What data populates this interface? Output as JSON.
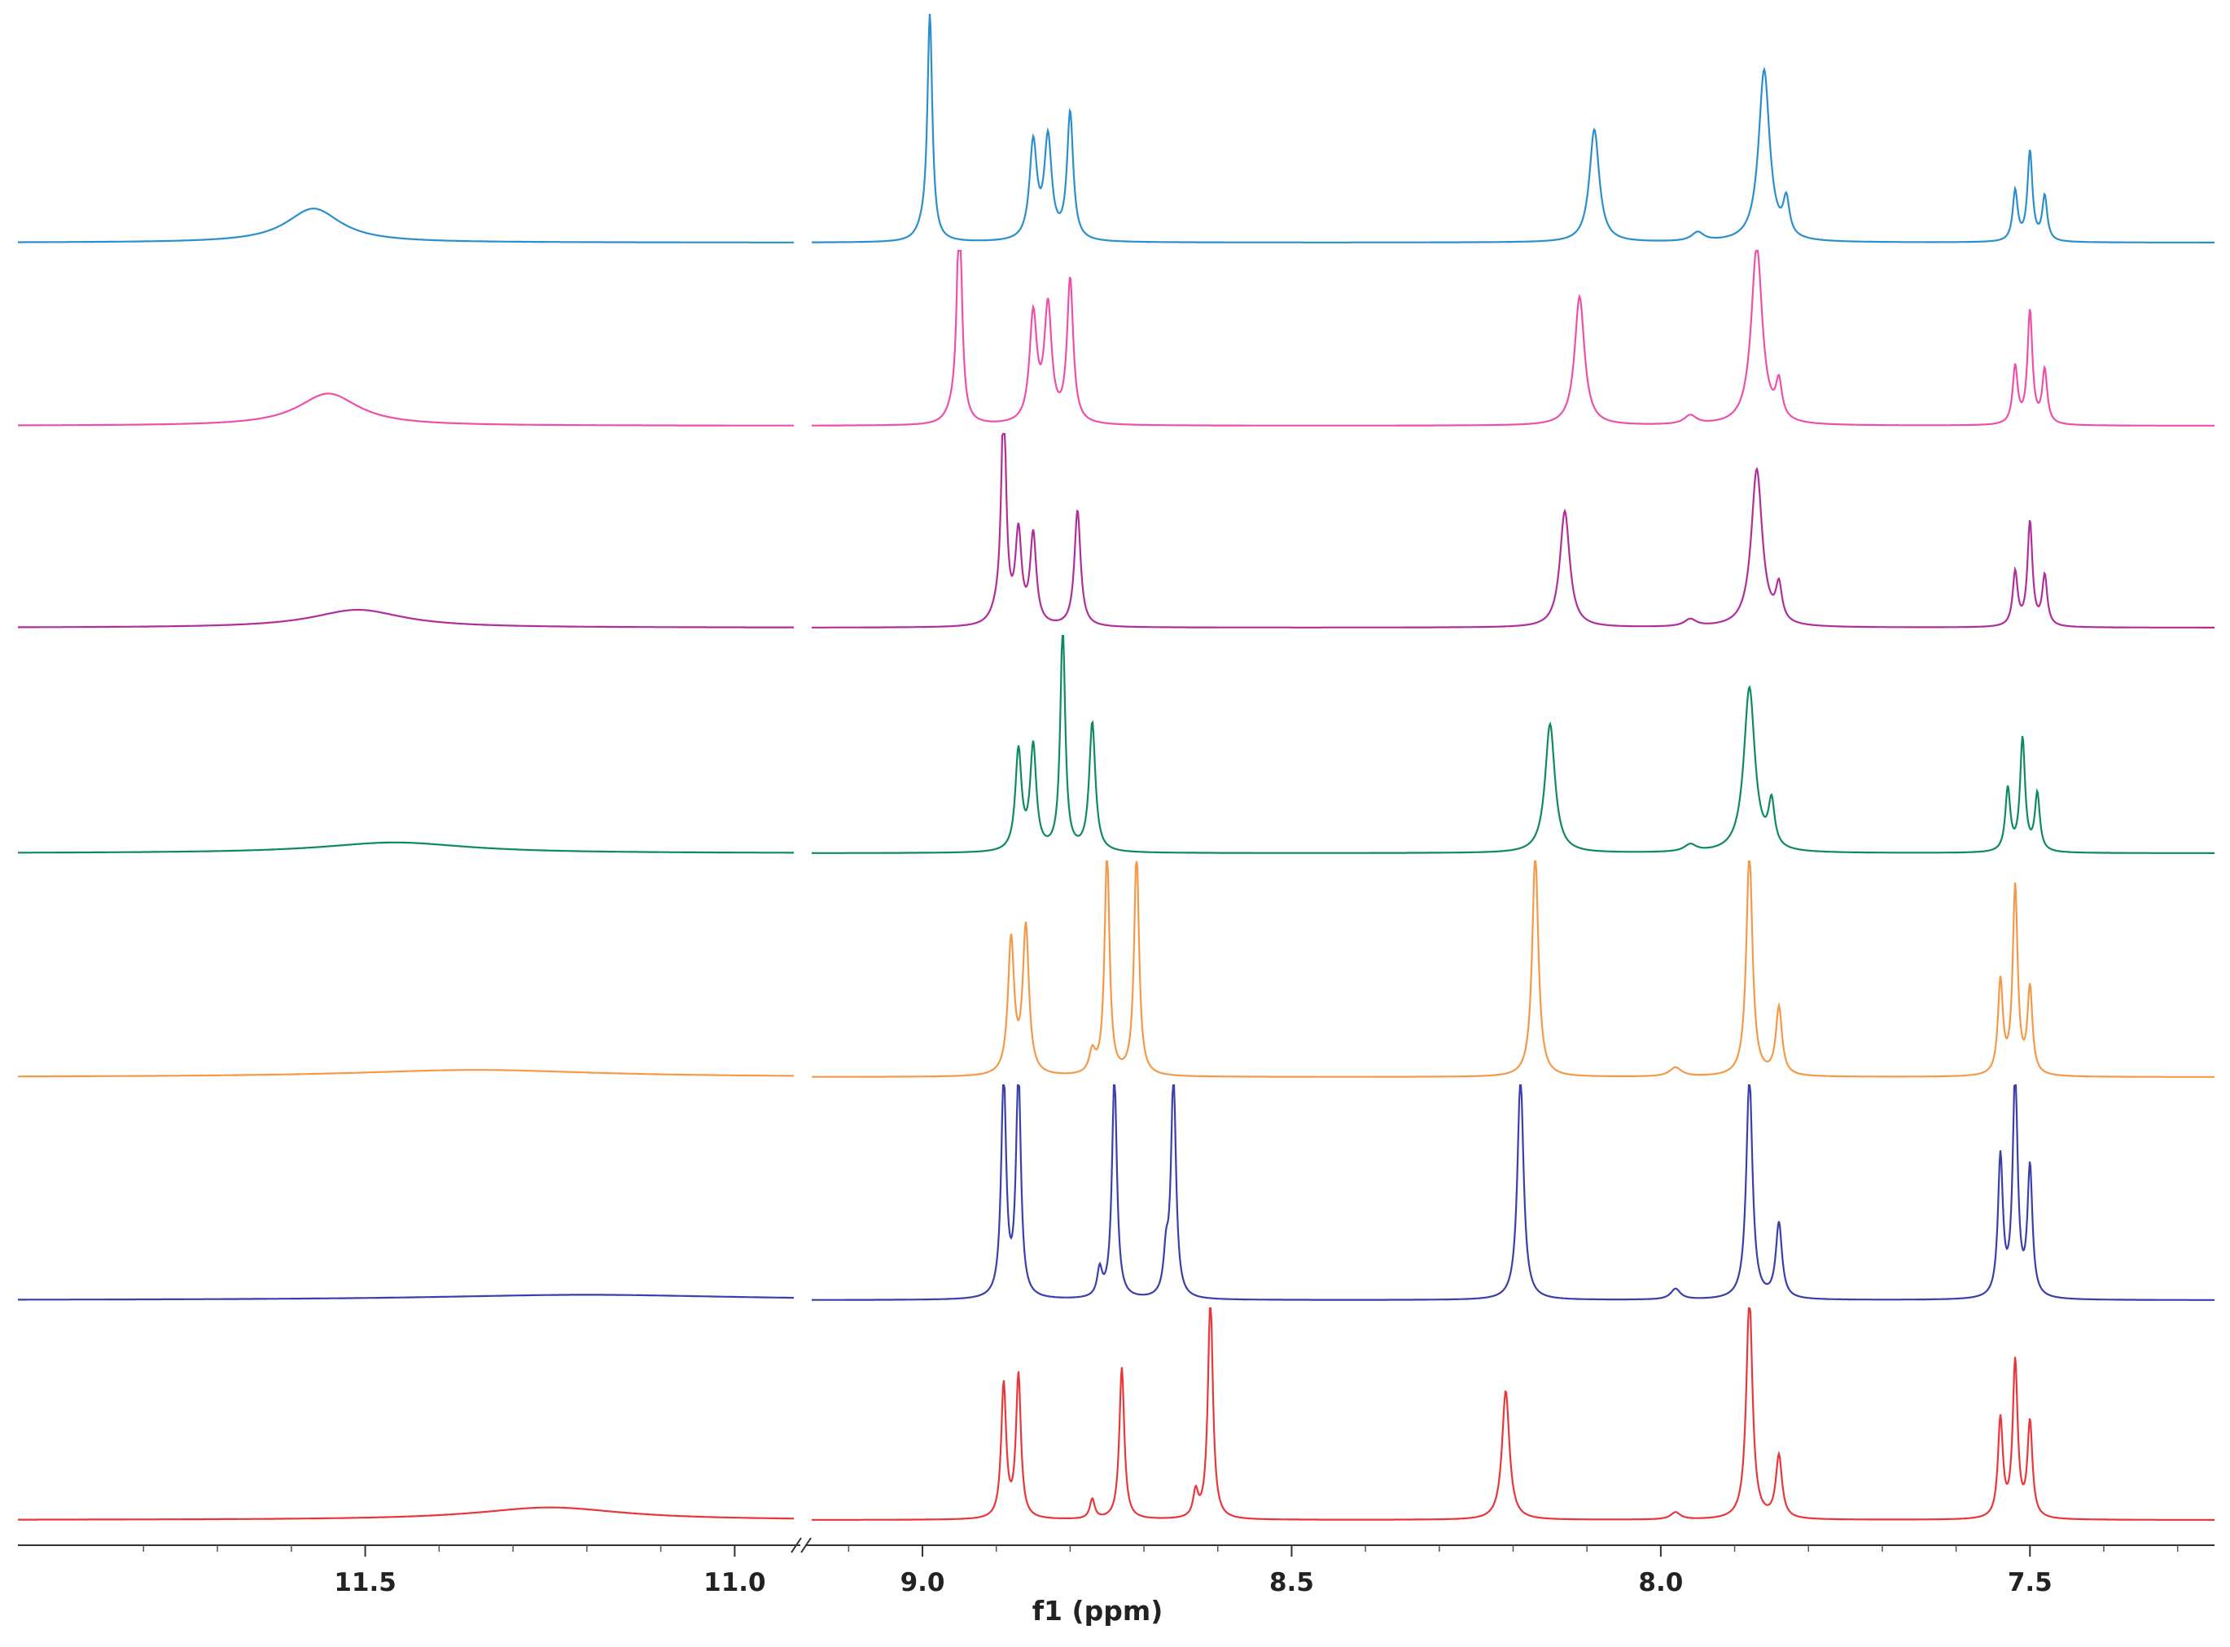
{
  "chart_data": {
    "type": "line",
    "title": "",
    "xlabel": "f1 (ppm)",
    "ylabel": "",
    "x_axis_reversed": true,
    "axis_break": true,
    "x_segments": [
      {
        "xlim": [
          11.97,
          10.92
        ]
      },
      {
        "xlim": [
          9.15,
          7.25
        ]
      }
    ],
    "ticks": [
      {
        "value": 11.5,
        "label": "11.5"
      },
      {
        "value": 11.0,
        "label": "11.0"
      },
      {
        "value": 9.0,
        "label": "9.0"
      },
      {
        "value": 8.5,
        "label": "8.5"
      },
      {
        "value": 8.0,
        "label": "8.0"
      },
      {
        "value": 7.5,
        "label": "7.5"
      }
    ],
    "minor_ticks": [
      11.8,
      11.7,
      11.6,
      11.4,
      11.3,
      11.2,
      11.1,
      9.1,
      8.9,
      8.8,
      8.7,
      8.6,
      8.4,
      8.3,
      8.2,
      8.1,
      7.9,
      7.8,
      7.7,
      7.6,
      7.4,
      7.3
    ],
    "grid": false,
    "legend": "none",
    "series": [
      {
        "color": "#2b8fcc",
        "peaks": [
          {
            "ppm": 11.57,
            "height": 0.19,
            "width": 0.045
          },
          {
            "ppm": 8.99,
            "height": 1.25,
            "width": 0.004
          },
          {
            "ppm": 9.0,
            "height": 0.05,
            "width": 0.01
          },
          {
            "ppm": 8.85,
            "height": 0.54,
            "width": 0.006
          },
          {
            "ppm": 8.83,
            "height": 0.56,
            "width": 0.006
          },
          {
            "ppm": 8.8,
            "height": 0.71,
            "width": 0.005
          },
          {
            "ppm": 8.09,
            "height": 0.63,
            "width": 0.008
          },
          {
            "ppm": 7.95,
            "height": 0.05,
            "width": 0.01
          },
          {
            "ppm": 7.86,
            "height": 0.96,
            "width": 0.009
          },
          {
            "ppm": 7.83,
            "height": 0.2,
            "width": 0.005
          },
          {
            "ppm": 7.52,
            "height": 0.28,
            "width": 0.004
          },
          {
            "ppm": 7.5,
            "height": 0.5,
            "width": 0.004
          },
          {
            "ppm": 7.48,
            "height": 0.25,
            "width": 0.004
          }
        ]
      },
      {
        "color": "#ee4fa8",
        "peaks": [
          {
            "ppm": 11.55,
            "height": 0.18,
            "width": 0.05
          },
          {
            "ppm": 8.95,
            "height": 1.25,
            "width": 0.004
          },
          {
            "ppm": 8.96,
            "height": 0.05,
            "width": 0.01
          },
          {
            "ppm": 8.85,
            "height": 0.6,
            "width": 0.006
          },
          {
            "ppm": 8.83,
            "height": 0.64,
            "width": 0.006
          },
          {
            "ppm": 8.8,
            "height": 0.8,
            "width": 0.005
          },
          {
            "ppm": 8.11,
            "height": 0.72,
            "width": 0.008
          },
          {
            "ppm": 7.96,
            "height": 0.05,
            "width": 0.01
          },
          {
            "ppm": 7.87,
            "height": 1.0,
            "width": 0.009
          },
          {
            "ppm": 7.84,
            "height": 0.2,
            "width": 0.005
          },
          {
            "ppm": 7.52,
            "height": 0.32,
            "width": 0.004
          },
          {
            "ppm": 7.5,
            "height": 0.63,
            "width": 0.004
          },
          {
            "ppm": 7.48,
            "height": 0.3,
            "width": 0.004
          }
        ]
      },
      {
        "color": "#b02d9b",
        "peaks": [
          {
            "ppm": 11.51,
            "height": 0.1,
            "width": 0.075
          },
          {
            "ppm": 8.89,
            "height": 1.25,
            "width": 0.004
          },
          {
            "ppm": 8.9,
            "height": 0.05,
            "width": 0.01
          },
          {
            "ppm": 8.87,
            "height": 0.5,
            "width": 0.005
          },
          {
            "ppm": 8.85,
            "height": 0.5,
            "width": 0.005
          },
          {
            "ppm": 8.79,
            "height": 0.65,
            "width": 0.005
          },
          {
            "ppm": 8.13,
            "height": 0.65,
            "width": 0.008
          },
          {
            "ppm": 7.96,
            "height": 0.04,
            "width": 0.01
          },
          {
            "ppm": 7.87,
            "height": 0.88,
            "width": 0.009
          },
          {
            "ppm": 7.84,
            "height": 0.2,
            "width": 0.005
          },
          {
            "ppm": 7.52,
            "height": 0.3,
            "width": 0.004
          },
          {
            "ppm": 7.5,
            "height": 0.58,
            "width": 0.004
          },
          {
            "ppm": 7.48,
            "height": 0.28,
            "width": 0.004
          }
        ]
      },
      {
        "color": "#0f8a5c",
        "peaks": [
          {
            "ppm": 11.46,
            "height": 0.06,
            "width": 0.12
          },
          {
            "ppm": 8.87,
            "height": 0.56,
            "width": 0.005
          },
          {
            "ppm": 8.85,
            "height": 0.58,
            "width": 0.005
          },
          {
            "ppm": 8.81,
            "height": 1.25,
            "width": 0.004
          },
          {
            "ppm": 8.77,
            "height": 0.72,
            "width": 0.005
          },
          {
            "ppm": 8.15,
            "height": 0.72,
            "width": 0.008
          },
          {
            "ppm": 7.96,
            "height": 0.04,
            "width": 0.01
          },
          {
            "ppm": 7.88,
            "height": 0.92,
            "width": 0.009
          },
          {
            "ppm": 7.85,
            "height": 0.25,
            "width": 0.005
          },
          {
            "ppm": 7.53,
            "height": 0.35,
            "width": 0.004
          },
          {
            "ppm": 7.51,
            "height": 0.63,
            "width": 0.004
          },
          {
            "ppm": 7.49,
            "height": 0.32,
            "width": 0.004
          }
        ]
      },
      {
        "color": "#f39a4a",
        "peaks": [
          {
            "ppm": 11.35,
            "height": 0.04,
            "width": 0.2
          },
          {
            "ppm": 8.88,
            "height": 0.75,
            "width": 0.005
          },
          {
            "ppm": 8.86,
            "height": 0.82,
            "width": 0.005
          },
          {
            "ppm": 8.75,
            "height": 1.25,
            "width": 0.004
          },
          {
            "ppm": 8.77,
            "height": 0.12,
            "width": 0.005
          },
          {
            "ppm": 8.71,
            "height": 1.25,
            "width": 0.004
          },
          {
            "ppm": 8.17,
            "height": 1.25,
            "width": 0.005
          },
          {
            "ppm": 7.98,
            "height": 0.05,
            "width": 0.01
          },
          {
            "ppm": 7.88,
            "height": 1.25,
            "width": 0.005
          },
          {
            "ppm": 7.84,
            "height": 0.38,
            "width": 0.005
          },
          {
            "ppm": 7.54,
            "height": 0.52,
            "width": 0.004
          },
          {
            "ppm": 7.52,
            "height": 1.05,
            "width": 0.004
          },
          {
            "ppm": 7.5,
            "height": 0.48,
            "width": 0.004
          }
        ]
      },
      {
        "color": "#3b3fa8",
        "peaks": [
          {
            "ppm": 11.2,
            "height": 0.03,
            "width": 0.25
          },
          {
            "ppm": 8.89,
            "height": 1.25,
            "width": 0.004
          },
          {
            "ppm": 8.87,
            "height": 1.25,
            "width": 0.004
          },
          {
            "ppm": 8.76,
            "height": 0.15,
            "width": 0.004
          },
          {
            "ppm": 8.74,
            "height": 1.25,
            "width": 0.004
          },
          {
            "ppm": 8.67,
            "height": 0.22,
            "width": 0.004
          },
          {
            "ppm": 8.66,
            "height": 1.25,
            "width": 0.004
          },
          {
            "ppm": 8.19,
            "height": 1.25,
            "width": 0.005
          },
          {
            "ppm": 7.98,
            "height": 0.06,
            "width": 0.008
          },
          {
            "ppm": 7.88,
            "height": 1.25,
            "width": 0.005
          },
          {
            "ppm": 7.84,
            "height": 0.42,
            "width": 0.005
          },
          {
            "ppm": 7.54,
            "height": 0.78,
            "width": 0.004
          },
          {
            "ppm": 7.52,
            "height": 1.25,
            "width": 0.004
          },
          {
            "ppm": 7.5,
            "height": 0.72,
            "width": 0.004
          }
        ]
      },
      {
        "color": "#e8373a",
        "peaks": [
          {
            "ppm": 11.25,
            "height": 0.07,
            "width": 0.12
          },
          {
            "ppm": 8.89,
            "height": 0.75,
            "width": 0.004
          },
          {
            "ppm": 8.87,
            "height": 0.8,
            "width": 0.004
          },
          {
            "ppm": 8.77,
            "height": 0.11,
            "width": 0.004
          },
          {
            "ppm": 8.73,
            "height": 0.85,
            "width": 0.004
          },
          {
            "ppm": 8.63,
            "height": 0.14,
            "width": 0.004
          },
          {
            "ppm": 8.61,
            "height": 1.25,
            "width": 0.004
          },
          {
            "ppm": 8.21,
            "height": 0.72,
            "width": 0.006
          },
          {
            "ppm": 7.98,
            "height": 0.04,
            "width": 0.008
          },
          {
            "ppm": 7.88,
            "height": 1.25,
            "width": 0.005
          },
          {
            "ppm": 7.84,
            "height": 0.35,
            "width": 0.005
          },
          {
            "ppm": 7.54,
            "height": 0.55,
            "width": 0.004
          },
          {
            "ppm": 7.52,
            "height": 0.87,
            "width": 0.004
          },
          {
            "ppm": 7.5,
            "height": 0.53,
            "width": 0.004
          }
        ]
      }
    ]
  }
}
